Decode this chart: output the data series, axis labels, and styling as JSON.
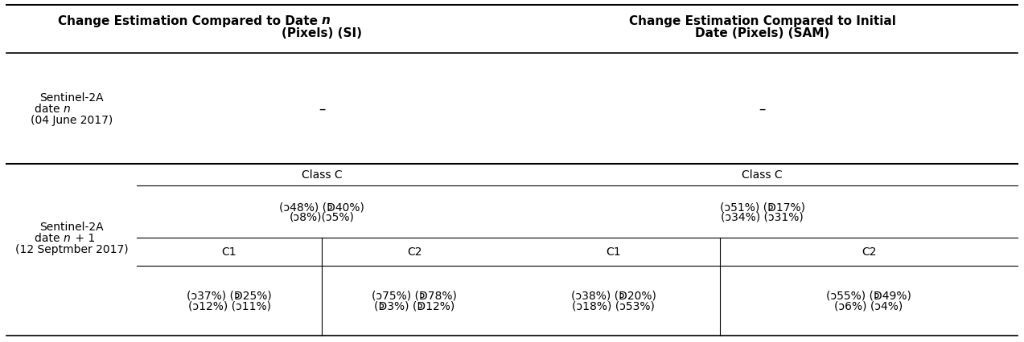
{
  "col_header_SI": "Change Estimation Compared to Date ",
  "col_header_SI_italic": "n",
  "col_header_SI_rest": "\n(Pixels) (SI)",
  "col_header_SAM": "Change Estimation Compared to Initial\nDate (Pixels) (SAM)",
  "row1_label": "Sentinel-2A\ndate ",
  "row1_label_italic": "n",
  "row1_label_rest": "\n(04 June 2017)",
  "row1_SI": "–",
  "row1_SAM": "–",
  "row2_label_pre": "Sentinel-2A\ndate ",
  "row2_label_italic": "n",
  "row2_label_post": " + 1\n(12 Septmber 2017)",
  "class_C": "Class C",
  "SI_classC_line1": "(ↄ48%) (ↁ40%)",
  "SI_classC_line2": "(ↄ8%)(ↄ5%)",
  "SAM_classC_line1": "(ↄ51%) (ↁ17%)",
  "SAM_classC_line2": "(ↄ34%) (ↄ31%)",
  "C1_label": "C1",
  "C2_label": "C2",
  "SI_C1_line1": "(ↄ37%) (ↁ25%)",
  "SI_C1_line2": "(ↄ12%) (ↄ11%)",
  "SI_C2_line1": "(ↄ75%) (ↁ78%)",
  "SI_C2_line2": "(ↁ3%) (ↁ12%)",
  "SAM_C1_line1": "(ↄ38%) (ↁ20%)",
  "SAM_C1_line2": "(ↄ18%) (ↄ53%)",
  "SAM_C2_line1": "(ↄ55%) (ↁ49%)",
  "SAM_C2_line2": "(ↄ6%) (ↄ4%)",
  "bg_color": "#ffffff",
  "text_color": "#000000",
  "header_fontsize": 11,
  "body_fontsize": 10
}
